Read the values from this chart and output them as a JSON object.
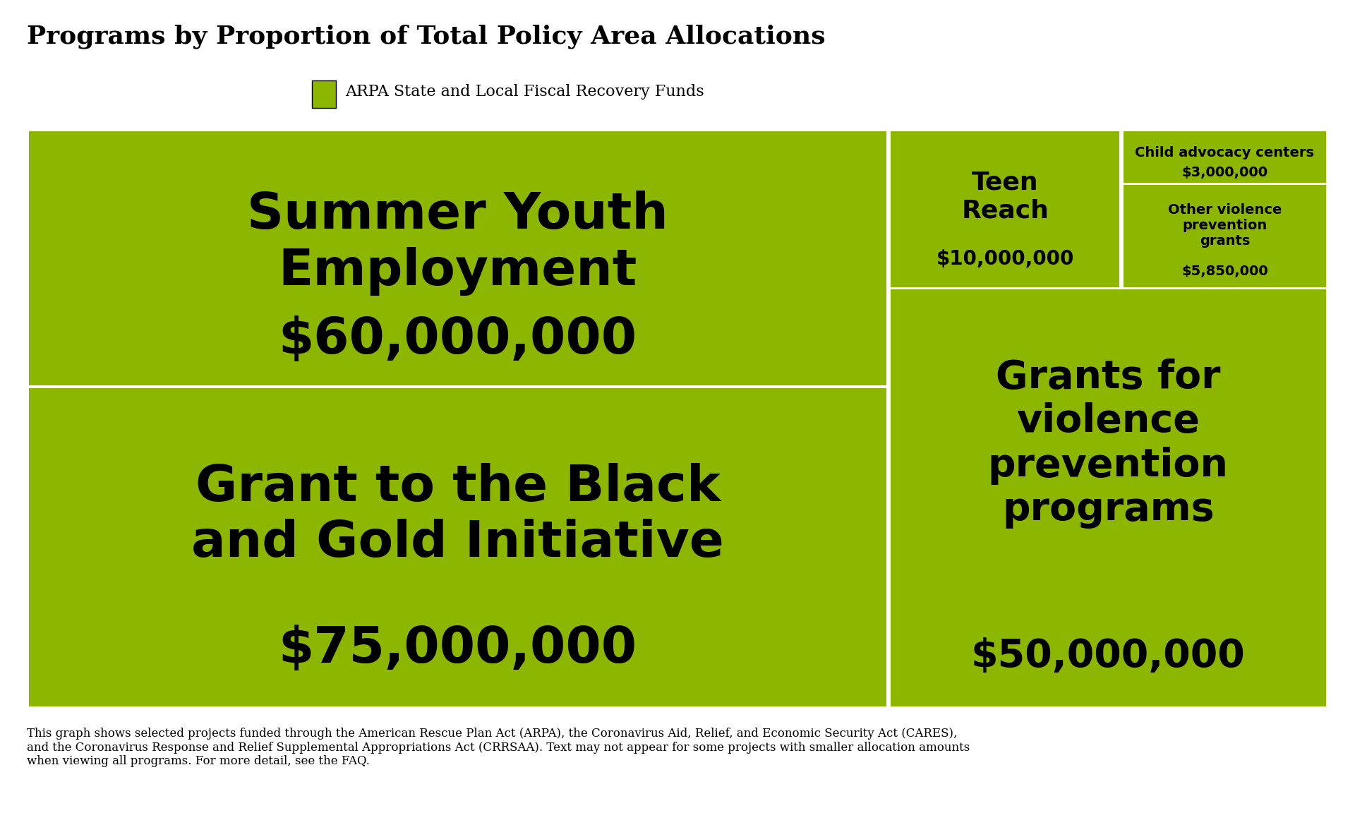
{
  "title": "Programs by Proportion of Total Policy Area Allocations",
  "legend_label": "ARPA State and Local Fiscal Recovery Funds",
  "legend_color": "#8db600",
  "bg_color": "#ffffff",
  "tile_color": "#8db600",
  "text_color": "#000000",
  "footer": "This graph shows selected projects funded through the American Rescue Plan Act (ARPA), the Coronavirus Aid, Relief, and Economic Security Act (CARES),\nand the Coronavirus Response and Relief Supplemental Appropriations Act (CRRSAA). Text may not appear for some projects with smaller allocation amounts\nwhen viewing all programs. For more detail, see the FAQ.",
  "programs": [
    {
      "name": "Summer Youth\nEmployment",
      "amount": 60000000,
      "amount_str": "$60,000,000"
    },
    {
      "name": "Grant to the Black\nand Gold Initiative",
      "amount": 75000000,
      "amount_str": "$75,000,000"
    },
    {
      "name": "Teen\nReach",
      "amount": 10000000,
      "amount_str": "$10,000,000"
    },
    {
      "name": "Child advocacy centers",
      "amount": 3000000,
      "amount_str": "$3,000,000"
    },
    {
      "name": "Other violence\nprevention\ngrants",
      "amount": 5850000,
      "amount_str": "$5,850,000"
    },
    {
      "name": "Grants for\nviolence\nprevention\nprograms",
      "amount": 50000000,
      "amount_str": "$50,000,000"
    }
  ]
}
